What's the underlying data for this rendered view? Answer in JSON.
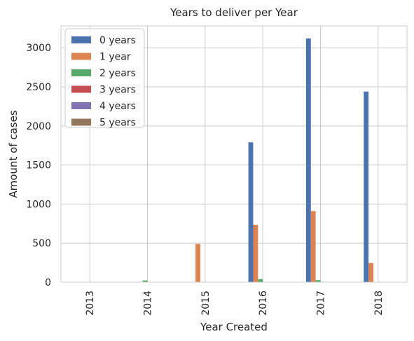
{
  "chart_data": {
    "type": "bar",
    "title": "Years to deliver per Year",
    "xlabel": "Year Created",
    "ylabel": "Amount of cases",
    "categories": [
      "2013",
      "2014",
      "2015",
      "2016",
      "2017",
      "2018"
    ],
    "ylim": [
      0,
      3280
    ],
    "yticks": [
      0,
      500,
      1000,
      1500,
      2000,
      2500,
      3000
    ],
    "grid": true,
    "legend_position": "upper-left",
    "series": [
      {
        "name": "0 years",
        "color": "#4c72b0",
        "values": [
          1,
          2,
          3,
          1790,
          3120,
          2440
        ]
      },
      {
        "name": "1 year",
        "color": "#dd8452",
        "values": [
          0,
          3,
          490,
          735,
          910,
          245
        ]
      },
      {
        "name": "2 years",
        "color": "#55a868",
        "values": [
          1,
          22,
          2,
          40,
          25,
          3
        ]
      },
      {
        "name": "3 years",
        "color": "#c44e52",
        "values": [
          0,
          2,
          1,
          5,
          2,
          0
        ]
      },
      {
        "name": "4 years",
        "color": "#8172b3",
        "values": [
          0,
          1,
          1,
          3,
          1,
          0
        ]
      },
      {
        "name": "5 years",
        "color": "#937860",
        "values": [
          0,
          0,
          1,
          2,
          1,
          0
        ]
      }
    ]
  }
}
